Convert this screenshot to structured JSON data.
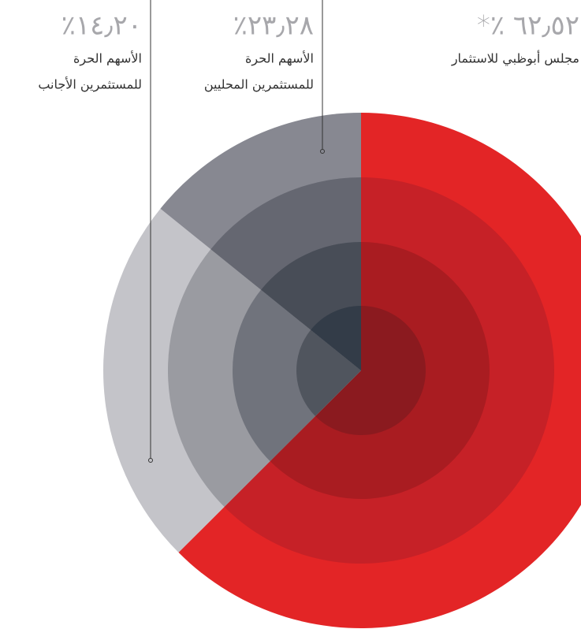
{
  "chart_data": {
    "type": "pie",
    "categories": [
      [
        "مجلس أبوظبي للاستثمار"
      ],
      [
        "الأسهم الحرة",
        "للمستثمرين المحليين"
      ],
      [
        "الأسهم الحرة",
        "للمستثمرين الأجانب"
      ]
    ],
    "values": [
      62.52,
      23.28,
      14.2
    ],
    "value_labels": [
      "*٪ ٦٢٫٥٢",
      "٪٢٣٫٢٨",
      "٪١٤٫٢٠"
    ],
    "colors": [
      [
        "#e32526",
        "#c62127",
        "#a91c21",
        "#8b1a1f"
      ],
      [
        "#c4c4c9",
        "#9a9ba1",
        "#70737c",
        "#50555e"
      ],
      [
        "#878891",
        "#656771",
        "#484d57",
        "#333c48"
      ]
    ]
  }
}
